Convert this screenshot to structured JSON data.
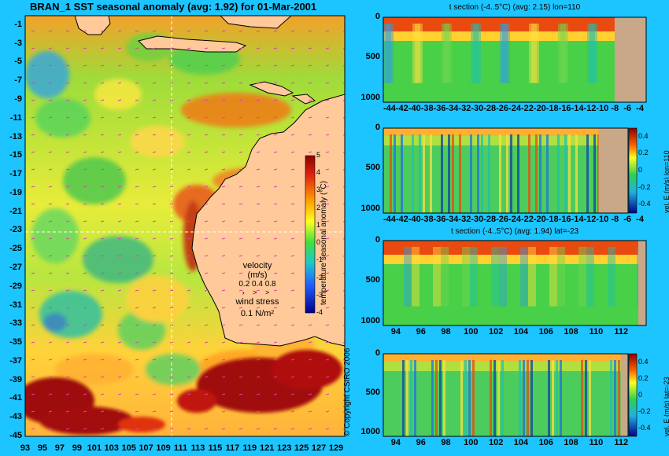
{
  "map": {
    "title": "BRAN_1  SST seasonal anomaly (avg: 1.92) for 01-Mar-2001",
    "lat_ticks": [
      "-1",
      "-3",
      "-5",
      "-7",
      "-9",
      "-11",
      "-13",
      "-15",
      "-17",
      "-19",
      "-21",
      "-23",
      "-25",
      "-27",
      "-29",
      "-31",
      "-33",
      "-35",
      "-37",
      "-39",
      "-41",
      "-43",
      "-45"
    ],
    "lon_ticks": [
      "93",
      "95",
      "97",
      "99",
      "101",
      "103",
      "105",
      "107",
      "109",
      "111",
      "113",
      "115",
      "117",
      "119",
      "121",
      "123",
      "125",
      "127",
      "129"
    ],
    "colorbar": {
      "ticks": [
        "5",
        "4",
        "3",
        "2",
        "1",
        "0",
        "-1",
        "-2",
        "-3",
        "-4"
      ],
      "label": "temperature seasonal anomaly (°C)"
    },
    "velocity_legend": {
      "title": "velocity (m/s)",
      "values": "0.2 0.4 0.8"
    },
    "wind_legend": {
      "title": "wind stress",
      "value": "0.1 N/m²"
    },
    "copyright": "© Copyright CSIRO 2006"
  },
  "panels": [
    {
      "title": "t section (-4..5°C) (avg: 2.15) lon=110",
      "x_ticks": [
        "-44",
        "-42",
        "-40",
        "-38",
        "-36",
        "-34",
        "-32",
        "-30",
        "-28",
        "-26",
        "-24",
        "-22",
        "-20",
        "-18",
        "-16",
        "-14",
        "-12",
        "-10",
        "-8",
        "-6",
        "-4"
      ],
      "y_ticks": [
        "0",
        "500",
        "1000"
      ],
      "land_start_fraction": 0.88,
      "has_colorbar": false
    },
    {
      "title": "",
      "x_ticks": [
        "-44",
        "-42",
        "-40",
        "-38",
        "-36",
        "-34",
        "-32",
        "-30",
        "-28",
        "-26",
        "-24",
        "-22",
        "-20",
        "-18",
        "-16",
        "-14",
        "-12",
        "-10",
        "-8",
        "-6",
        "-4"
      ],
      "y_ticks": [
        "0",
        "500",
        "1000"
      ],
      "land_start_fraction": 0.88,
      "has_colorbar": true,
      "colorbar_ticks": [
        "0.4",
        "0.2",
        "0",
        "-0.2",
        "-0.4"
      ],
      "side_label": "vel. E (m/s) lon=110"
    },
    {
      "title": "t section (-4..5°C) (avg: 1.94) lat=-23",
      "x_ticks": [
        "94",
        "96",
        "98",
        "100",
        "102",
        "104",
        "106",
        "108",
        "110",
        "112"
      ],
      "y_ticks": [
        "0",
        "500",
        "1000"
      ],
      "land_start_fraction": 0.97,
      "has_colorbar": false
    },
    {
      "title": "",
      "x_ticks": [
        "94",
        "96",
        "98",
        "100",
        "102",
        "104",
        "106",
        "108",
        "110",
        "112"
      ],
      "y_ticks": [
        "0",
        "500",
        "1000"
      ],
      "land_start_fraction": 0.97,
      "has_colorbar": true,
      "colorbar_ticks": [
        "0.4",
        "0.2",
        "0",
        "-0.2",
        "-0.4"
      ],
      "side_label": "vel. E (m/s) lat=-23"
    }
  ],
  "chart_data": [
    {
      "type": "heatmap",
      "title": "BRAN_1  SST seasonal anomaly (avg: 1.92) for 01-Mar-2001",
      "x_label": "",
      "y_label": "",
      "xlim": [
        93,
        130
      ],
      "ylim": [
        -45,
        0
      ],
      "colorbar_range": [
        -4,
        5
      ],
      "colorbar_label": "temperature seasonal anomaly (°C)",
      "mean": 1.92
    },
    {
      "type": "heatmap",
      "title": "t section (-4..5°C) (avg: 2.15) lon=110",
      "xlim": [
        -45,
        -3
      ],
      "ylim": [
        1050,
        0
      ],
      "value_range": [
        -4,
        5
      ],
      "mean": 2.15
    },
    {
      "type": "heatmap",
      "title": "",
      "xlim": [
        -45,
        -3
      ],
      "ylim": [
        1050,
        0
      ],
      "colorbar_range": [
        -0.5,
        0.5
      ],
      "colorbar_label": "vel. E (m/s) lon=110"
    },
    {
      "type": "heatmap",
      "title": "t section (-4..5°C) (avg: 1.94) lat=-23",
      "xlim": [
        93,
        114
      ],
      "ylim": [
        1050,
        0
      ],
      "value_range": [
        -4,
        5
      ],
      "mean": 1.94
    },
    {
      "type": "heatmap",
      "title": "",
      "xlim": [
        93,
        114
      ],
      "ylim": [
        1050,
        0
      ],
      "colorbar_range": [
        -0.5,
        0.5
      ],
      "colorbar_label": "vel. E (m/s) lat=-23"
    }
  ]
}
